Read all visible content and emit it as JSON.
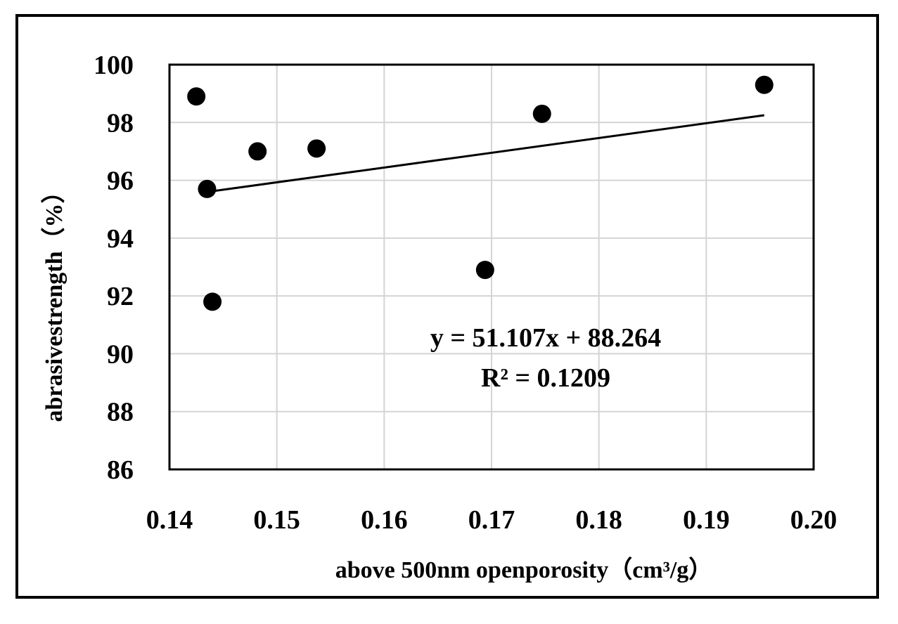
{
  "chart_data": {
    "type": "scatter",
    "xlabel": "above 500nm openporosity（cm³/g）",
    "ylabel": "abrasivestrength（%）",
    "xlim": [
      0.14,
      0.2
    ],
    "ylim": [
      86,
      100
    ],
    "x_ticks": [
      "0.14",
      "0.15",
      "0.16",
      "0.17",
      "0.18",
      "0.19",
      "0.20"
    ],
    "y_ticks": [
      "86",
      "88",
      "90",
      "92",
      "94",
      "96",
      "98",
      "100"
    ],
    "grid": true,
    "points": [
      {
        "x": 0.1425,
        "y": 98.9
      },
      {
        "x": 0.1435,
        "y": 95.7
      },
      {
        "x": 0.144,
        "y": 91.8
      },
      {
        "x": 0.1482,
        "y": 97.0
      },
      {
        "x": 0.1537,
        "y": 97.1
      },
      {
        "x": 0.1694,
        "y": 92.9
      },
      {
        "x": 0.1747,
        "y": 98.3
      },
      {
        "x": 0.1954,
        "y": 99.3
      }
    ],
    "trendline": {
      "type": "linear",
      "slope": 51.107,
      "intercept": 88.264,
      "x_range": [
        0.1435,
        0.1954
      ]
    },
    "annotation": {
      "equation": "y = 51.107x + 88.264",
      "r_squared": "R² = 0.1209"
    }
  }
}
